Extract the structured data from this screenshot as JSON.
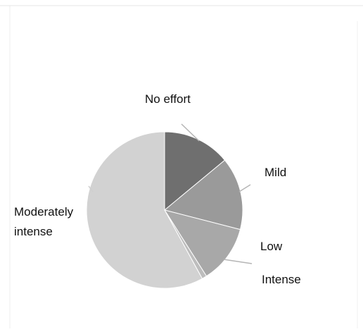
{
  "chart_data": {
    "type": "pie",
    "title": "",
    "start_angle_deg": 0,
    "direction": "clockwise",
    "legend": "none",
    "slices": [
      {
        "label": "No effort",
        "value": 14,
        "color": "#6f6f6f"
      },
      {
        "label": "Mild",
        "value": 15,
        "color": "#9a9a9a"
      },
      {
        "label": "Low",
        "value": 12,
        "color": "#a8a8a8"
      },
      {
        "label": "Intense",
        "value": 1,
        "color": "#bdbdbd"
      },
      {
        "label": "Moderately intense",
        "label_lines": [
          "Moderately",
          "intense"
        ],
        "value": 58,
        "color": "#d2d2d2"
      }
    ]
  }
}
